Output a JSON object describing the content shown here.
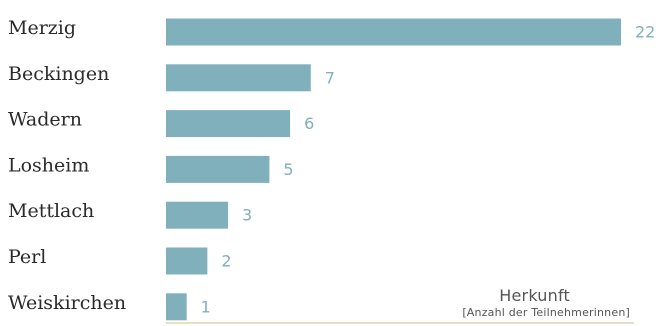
{
  "chart_data": {
    "type": "bar",
    "orientation": "horizontal",
    "categories": [
      "Merzig",
      "Beckingen",
      "Wadern",
      "Losheim",
      "Mettlach",
      "Perl",
      "Weiskirchen"
    ],
    "values": [
      22,
      7,
      6,
      5,
      3,
      2,
      1
    ],
    "legend_title": "Herkunft",
    "legend_subtitle": "[Anzahl der Teilnehmerinnen]",
    "grid": false,
    "legend_placement": "bottom-right",
    "colors": {
      "bar": "#7fb0bb",
      "value_label": "#7fb0bb",
      "category_label": "#2a2a2a"
    }
  }
}
